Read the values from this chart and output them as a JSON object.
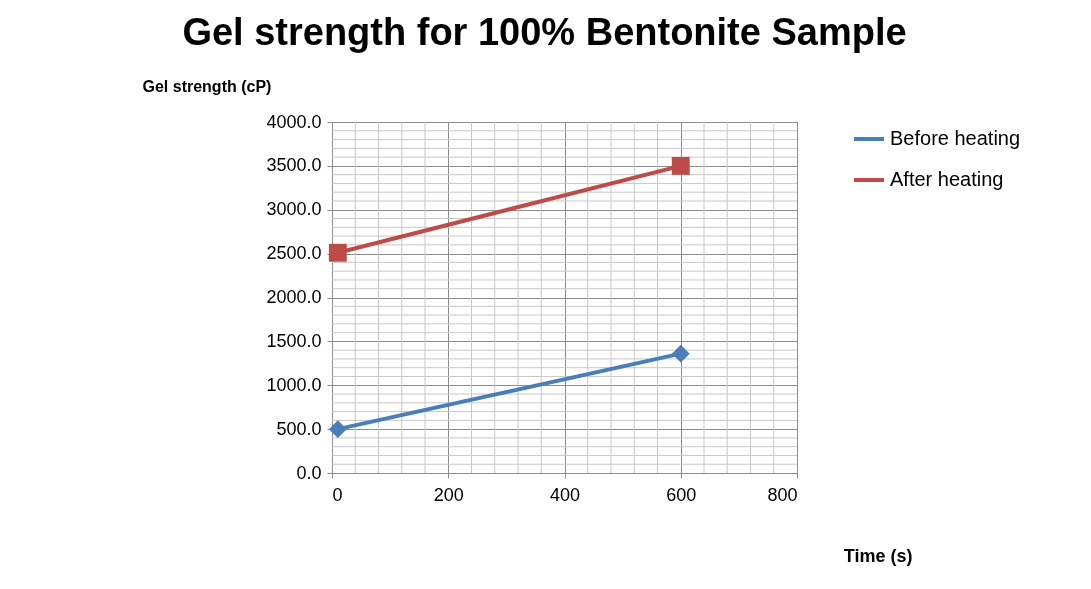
{
  "chart_data": {
    "type": "line",
    "title": "Gel strength for 100% Bentonite Sample",
    "xlabel": "Time (s)",
    "ylabel": "Gel strength (cP)",
    "x": [
      10,
      600
    ],
    "series": [
      {
        "name": "Before heating",
        "color": "#4a7ebb",
        "values": [
          500,
          1360
        ],
        "marker": "diamond"
      },
      {
        "name": "After heating",
        "color": "#be4b48",
        "values": [
          2510,
          3500
        ],
        "marker": "square"
      }
    ],
    "xlim": [
      0,
      800
    ],
    "xticks": [
      0,
      200,
      400,
      600,
      800
    ],
    "ylim": [
      0,
      4000
    ],
    "yticks": [
      {
        "value": 0,
        "label": "0.0"
      },
      {
        "value": 500,
        "label": "500.0"
      },
      {
        "value": 1000,
        "label": "1000.0"
      },
      {
        "value": 1500,
        "label": "1500.0"
      },
      {
        "value": 2000,
        "label": "2000.0"
      },
      {
        "value": 2500,
        "label": "2500.0"
      },
      {
        "value": 3000,
        "label": "3000.0"
      },
      {
        "value": 3500,
        "label": "3500.0"
      },
      {
        "value": 4000,
        "label": "4000.0"
      }
    ],
    "grid": true,
    "legend": "right",
    "line_style": "solid"
  }
}
